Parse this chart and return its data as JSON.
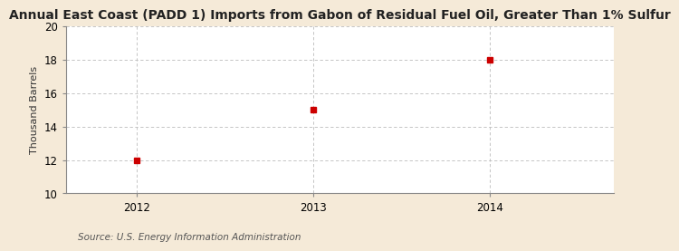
{
  "title": "Annual East Coast (PADD 1) Imports from Gabon of Residual Fuel Oil, Greater Than 1% Sulfur",
  "ylabel": "Thousand Barrels",
  "source": "Source: U.S. Energy Information Administration",
  "x": [
    2012,
    2013,
    2014
  ],
  "y": [
    12,
    15,
    18
  ],
  "xlim": [
    2011.6,
    2014.7
  ],
  "ylim": [
    10,
    20
  ],
  "yticks": [
    10,
    12,
    14,
    16,
    18,
    20
  ],
  "xticks": [
    2012,
    2013,
    2014
  ],
  "marker_color": "#cc0000",
  "marker_size": 4,
  "plot_bg_color": "#ffffff",
  "fig_bg_color": "#f5ead8",
  "grid_color": "#bbbbbb",
  "title_fontsize": 10,
  "label_fontsize": 8,
  "tick_fontsize": 8.5,
  "source_fontsize": 7.5
}
